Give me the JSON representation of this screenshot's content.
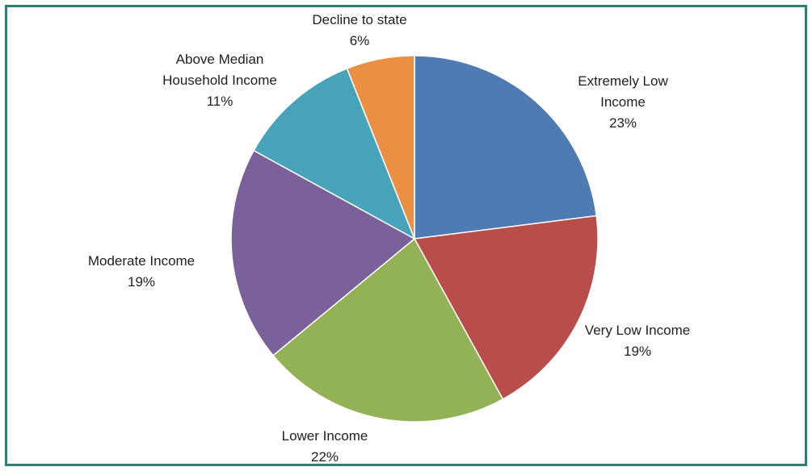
{
  "chart_data": {
    "type": "pie",
    "title": "",
    "start_angle_deg": 0,
    "direction": "clockwise",
    "slices": [
      {
        "label_lines": [
          "Extremely Low",
          "Income"
        ],
        "pct_label": "23%",
        "value": 23,
        "color": "#4f7bb5"
      },
      {
        "label_lines": [
          "Very Low Income"
        ],
        "pct_label": "19%",
        "value": 19,
        "color": "#b84d49"
      },
      {
        "label_lines": [
          "Lower Income"
        ],
        "pct_label": "22%",
        "value": 22,
        "color": "#93b155"
      },
      {
        "label_lines": [
          "Moderate Income"
        ],
        "pct_label": "19%",
        "value": 19,
        "color": "#7b6199"
      },
      {
        "label_lines": [
          "Above Median",
          "Household Income"
        ],
        "pct_label": "11%",
        "value": 11,
        "color": "#47a3ba"
      },
      {
        "label_lines": [
          "Decline to state"
        ],
        "pct_label": "6%",
        "value": 6,
        "color": "#eb8f42"
      }
    ]
  }
}
